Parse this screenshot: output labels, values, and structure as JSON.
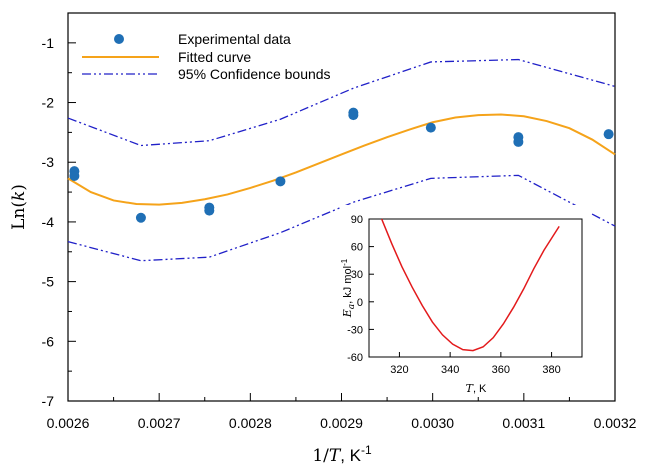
{
  "chart_data": [
    {
      "type": "scatter",
      "xlabel_prefix": "1/",
      "xlabel_var": "T",
      "xlabel_unit": ", K",
      "xlabel_sup": "-1",
      "ylabel_prefix": "Ln(",
      "ylabel_var": "k",
      "ylabel_suffix": ")",
      "xlim": [
        0.0026,
        0.0032
      ],
      "ylim": [
        -7,
        -0.5
      ],
      "xticks": [
        "0.0026",
        "0.0027",
        "0.0028",
        "0.0029",
        "0.0030",
        "0.0031",
        "0.0032"
      ],
      "yticks": [
        "-1",
        "-2",
        "-3",
        "-4",
        "-5",
        "-6",
        "-7"
      ],
      "legend_position": "top-left",
      "series": [
        {
          "name": "Experimental data",
          "kind": "scatter",
          "color": "#1f6fb5",
          "points": [
            [
              0.002607,
              -3.15
            ],
            [
              0.002607,
              -3.23
            ],
            [
              0.00268,
              -3.93
            ],
            [
              0.002755,
              -3.76
            ],
            [
              0.002755,
              -3.81
            ],
            [
              0.002833,
              -3.32
            ],
            [
              0.002913,
              -2.17
            ],
            [
              0.002913,
              -2.21
            ],
            [
              0.002998,
              -2.42
            ],
            [
              0.003094,
              -2.58
            ],
            [
              0.003094,
              -2.66
            ],
            [
              0.003193,
              -2.53
            ]
          ]
        },
        {
          "name": "Fitted curve",
          "kind": "line",
          "color": "#f5a31a",
          "points": [
            [
              0.0026,
              -3.27
            ],
            [
              0.002625,
              -3.5
            ],
            [
              0.00265,
              -3.64
            ],
            [
              0.002675,
              -3.7
            ],
            [
              0.0027,
              -3.71
            ],
            [
              0.002725,
              -3.68
            ],
            [
              0.00275,
              -3.62
            ],
            [
              0.002775,
              -3.54
            ],
            [
              0.0028,
              -3.43
            ],
            [
              0.002825,
              -3.31
            ],
            [
              0.00285,
              -3.17
            ],
            [
              0.002875,
              -3.02
            ],
            [
              0.0029,
              -2.87
            ],
            [
              0.002925,
              -2.72
            ],
            [
              0.00295,
              -2.58
            ],
            [
              0.002975,
              -2.45
            ],
            [
              0.003,
              -2.33
            ],
            [
              0.003025,
              -2.25
            ],
            [
              0.00305,
              -2.21
            ],
            [
              0.003075,
              -2.2
            ],
            [
              0.0031,
              -2.23
            ],
            [
              0.003125,
              -2.31
            ],
            [
              0.00315,
              -2.43
            ],
            [
              0.003175,
              -2.62
            ],
            [
              0.0032,
              -2.87
            ]
          ]
        },
        {
          "name": "95% Confidence bounds",
          "kind": "line",
          "dash": "dash-dot-dot",
          "color": "#2020c8",
          "points": [
            [
              0.0026,
              -2.26
            ],
            [
              0.00268,
              -2.72
            ],
            [
              0.002755,
              -2.64
            ],
            [
              0.002833,
              -2.28
            ],
            [
              0.002913,
              -1.76
            ],
            [
              0.002998,
              -1.32
            ],
            [
              0.003094,
              -1.28
            ],
            [
              0.0032,
              -1.73
            ]
          ]
        },
        {
          "kind": "line",
          "dash": "dash-dot-dot",
          "color": "#2020c8",
          "points": [
            [
              0.0026,
              -4.33
            ],
            [
              0.00268,
              -4.65
            ],
            [
              0.002755,
              -4.59
            ],
            [
              0.002833,
              -4.18
            ],
            [
              0.002913,
              -3.67
            ],
            [
              0.002998,
              -3.27
            ],
            [
              0.003094,
              -3.22
            ],
            [
              0.0032,
              -4.07
            ]
          ]
        }
      ]
    },
    {
      "type": "line",
      "inset": true,
      "xlabel_var": "T",
      "xlabel_unit": ", K",
      "ylabel_var": "E",
      "ylabel_sub": "a",
      "ylabel_unit": ", kJ mol",
      "ylabel_sup": "-1",
      "xlim": [
        308,
        392
      ],
      "ylim": [
        -60,
        90
      ],
      "xticks": [
        "320",
        "340",
        "360",
        "380"
      ],
      "yticks": [
        "90",
        "60",
        "30",
        "0",
        "-30",
        "-60"
      ],
      "series": [
        {
          "kind": "line",
          "color": "#e31a1c",
          "points": [
            [
              313,
              90
            ],
            [
              317,
              63
            ],
            [
              321,
              38
            ],
            [
              325,
              16
            ],
            [
              329,
              -4
            ],
            [
              333,
              -22
            ],
            [
              337,
              -36
            ],
            [
              341,
              -46
            ],
            [
              345,
              -52
            ],
            [
              349,
              -53
            ],
            [
              353,
              -49
            ],
            [
              357,
              -39
            ],
            [
              361,
              -24
            ],
            [
              365,
              -6
            ],
            [
              369,
              14
            ],
            [
              373,
              36
            ],
            [
              377,
              56
            ],
            [
              383,
              82
            ]
          ]
        }
      ]
    }
  ]
}
